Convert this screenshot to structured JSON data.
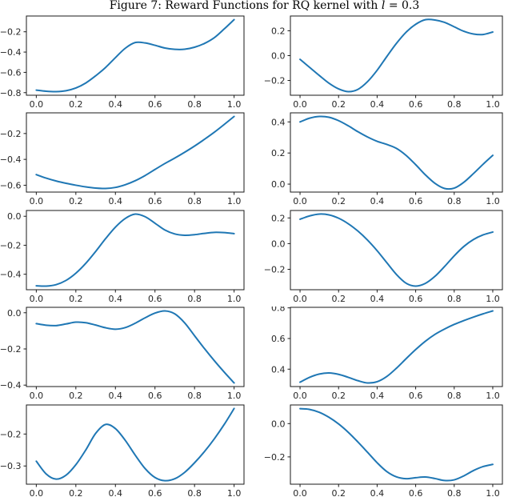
{
  "title": {
    "prefix": "Figure 7: Reward Functions for RQ kernel with ",
    "variable": "l",
    "suffix": " = 0.3"
  },
  "style": {
    "line_color": "#1f77b4",
    "axis_color": "#1a1a1a",
    "text_color": "#262626",
    "background": "#ffffff"
  },
  "chart_data": [
    {
      "name": "reward-function-1",
      "type": "line",
      "grid": false,
      "position": {
        "row": 0,
        "col": 0
      },
      "xlim": [
        -0.05,
        1.05
      ],
      "ylim": [
        -0.8255,
        -0.0445
      ],
      "xticks": [
        0.0,
        0.2,
        0.4,
        0.6,
        0.8,
        1.0
      ],
      "yticks": [
        -0.2,
        -0.4,
        -0.6,
        -0.8
      ],
      "x": [
        0,
        0.05,
        0.1,
        0.15,
        0.2,
        0.25,
        0.3,
        0.35,
        0.4,
        0.45,
        0.5,
        0.55,
        0.6,
        0.65,
        0.7,
        0.75,
        0.8,
        0.85,
        0.9,
        0.95,
        1.0
      ],
      "y": [
        -0.775,
        -0.786,
        -0.79,
        -0.781,
        -0.754,
        -0.705,
        -0.634,
        -0.552,
        -0.455,
        -0.362,
        -0.306,
        -0.31,
        -0.333,
        -0.36,
        -0.373,
        -0.372,
        -0.352,
        -0.315,
        -0.258,
        -0.172,
        -0.08
      ]
    },
    {
      "name": "reward-function-2",
      "type": "line",
      "grid": false,
      "position": {
        "row": 0,
        "col": 1
      },
      "xlim": [
        -0.05,
        1.05
      ],
      "ylim": [
        -0.319,
        0.319
      ],
      "xticks": [
        0.0,
        0.2,
        0.4,
        0.6,
        0.8,
        1.0
      ],
      "yticks": [
        0.2,
        0.0,
        -0.2
      ],
      "x": [
        0,
        0.05,
        0.1,
        0.15,
        0.2,
        0.25,
        0.3,
        0.35,
        0.4,
        0.45,
        0.5,
        0.55,
        0.6,
        0.65,
        0.7,
        0.75,
        0.8,
        0.85,
        0.9,
        0.95,
        1.0
      ],
      "y": [
        -0.03,
        -0.095,
        -0.16,
        -0.222,
        -0.268,
        -0.29,
        -0.272,
        -0.21,
        -0.118,
        -0.008,
        0.098,
        0.188,
        0.252,
        0.289,
        0.287,
        0.268,
        0.232,
        0.196,
        0.174,
        0.17,
        0.19
      ]
    },
    {
      "name": "reward-function-3",
      "type": "line",
      "grid": false,
      "position": {
        "row": 1,
        "col": 0
      },
      "xlim": [
        -0.05,
        1.05
      ],
      "ylim": [
        -0.6529,
        -0.0401
      ],
      "xticks": [
        0.0,
        0.2,
        0.4,
        0.6,
        0.8,
        1.0
      ],
      "yticks": [
        -0.2,
        -0.4,
        -0.6
      ],
      "x": [
        0,
        0.05,
        0.1,
        0.15,
        0.2,
        0.25,
        0.3,
        0.35,
        0.4,
        0.45,
        0.5,
        0.55,
        0.6,
        0.65,
        0.7,
        0.75,
        0.8,
        0.85,
        0.9,
        0.95,
        1.0
      ],
      "y": [
        -0.518,
        -0.545,
        -0.567,
        -0.585,
        -0.6,
        -0.613,
        -0.622,
        -0.625,
        -0.617,
        -0.596,
        -0.565,
        -0.525,
        -0.478,
        -0.432,
        -0.39,
        -0.345,
        -0.297,
        -0.245,
        -0.19,
        -0.13,
        -0.068
      ]
    },
    {
      "name": "reward-function-4",
      "type": "line",
      "grid": false,
      "position": {
        "row": 1,
        "col": 1
      },
      "xlim": [
        -0.05,
        1.05
      ],
      "ylim": [
        -0.0512,
        0.4582
      ],
      "xticks": [
        0.0,
        0.2,
        0.4,
        0.6,
        0.8,
        1.0
      ],
      "yticks": [
        0.4,
        0.2,
        0.0
      ],
      "x": [
        0,
        0.05,
        0.1,
        0.15,
        0.2,
        0.25,
        0.3,
        0.35,
        0.4,
        0.45,
        0.5,
        0.55,
        0.6,
        0.65,
        0.7,
        0.75,
        0.8,
        0.85,
        0.9,
        0.95,
        1.0
      ],
      "y": [
        0.4,
        0.424,
        0.435,
        0.43,
        0.408,
        0.375,
        0.337,
        0.303,
        0.275,
        0.255,
        0.23,
        0.185,
        0.125,
        0.06,
        0.005,
        -0.028,
        -0.026,
        0.012,
        0.068,
        0.128,
        0.185
      ]
    },
    {
      "name": "reward-function-5",
      "type": "line",
      "grid": false,
      "position": {
        "row": 2,
        "col": 0
      },
      "xlim": [
        -0.05,
        1.05
      ],
      "ylim": [
        -0.5069,
        0.0399
      ],
      "xticks": [
        0.0,
        0.2,
        0.4,
        0.6,
        0.8,
        1.0
      ],
      "yticks": [
        0.0,
        -0.2,
        -0.4
      ],
      "x": [
        0,
        0.05,
        0.1,
        0.15,
        0.2,
        0.25,
        0.3,
        0.35,
        0.4,
        0.45,
        0.5,
        0.55,
        0.6,
        0.65,
        0.7,
        0.75,
        0.8,
        0.85,
        0.9,
        0.95,
        1.0
      ],
      "y": [
        -0.48,
        -0.482,
        -0.472,
        -0.443,
        -0.393,
        -0.325,
        -0.243,
        -0.155,
        -0.075,
        -0.015,
        0.015,
        -0.003,
        -0.048,
        -0.095,
        -0.122,
        -0.131,
        -0.127,
        -0.118,
        -0.111,
        -0.113,
        -0.12
      ]
    },
    {
      "name": "reward-function-6",
      "type": "line",
      "grid": false,
      "position": {
        "row": 2,
        "col": 1
      },
      "xlim": [
        -0.05,
        1.05
      ],
      "ylim": [
        -0.359,
        0.258
      ],
      "xticks": [
        0.0,
        0.2,
        0.4,
        0.6,
        0.8,
        1.0
      ],
      "yticks": [
        0.2,
        0.0,
        -0.2
      ],
      "x": [
        0,
        0.05,
        0.1,
        0.15,
        0.2,
        0.25,
        0.3,
        0.35,
        0.4,
        0.45,
        0.5,
        0.55,
        0.6,
        0.65,
        0.7,
        0.75,
        0.8,
        0.85,
        0.9,
        0.95,
        1.0
      ],
      "y": [
        0.19,
        0.216,
        0.23,
        0.224,
        0.198,
        0.155,
        0.098,
        0.028,
        -0.055,
        -0.148,
        -0.24,
        -0.308,
        -0.331,
        -0.31,
        -0.255,
        -0.178,
        -0.095,
        -0.022,
        0.032,
        0.068,
        0.09
      ]
    },
    {
      "name": "reward-function-7",
      "type": "line",
      "grid": false,
      "position": {
        "row": 3,
        "col": 0
      },
      "xlim": [
        -0.05,
        1.05
      ],
      "ylim": [
        -0.408,
        0.03
      ],
      "xticks": [
        0.0,
        0.2,
        0.4,
        0.6,
        0.8,
        1.0
      ],
      "yticks": [
        0.0,
        -0.2,
        -0.4
      ],
      "x": [
        0,
        0.05,
        0.1,
        0.15,
        0.2,
        0.25,
        0.3,
        0.35,
        0.4,
        0.45,
        0.5,
        0.55,
        0.6,
        0.65,
        0.7,
        0.75,
        0.8,
        0.85,
        0.9,
        0.95,
        1.0
      ],
      "y": [
        -0.06,
        -0.069,
        -0.071,
        -0.062,
        -0.052,
        -0.055,
        -0.068,
        -0.083,
        -0.091,
        -0.082,
        -0.058,
        -0.028,
        -0.002,
        0.01,
        -0.006,
        -0.056,
        -0.127,
        -0.198,
        -0.265,
        -0.328,
        -0.388
      ]
    },
    {
      "name": "reward-function-8",
      "type": "line",
      "grid": false,
      "position": {
        "row": 3,
        "col": 1
      },
      "xlim": [
        -0.05,
        1.05
      ],
      "ylim": [
        0.2865,
        0.8035
      ],
      "xticks": [
        0.0,
        0.2,
        0.4,
        0.6,
        0.8,
        1.0
      ],
      "yticks": [
        0.8,
        0.6,
        0.4
      ],
      "x": [
        0,
        0.05,
        0.1,
        0.15,
        0.2,
        0.25,
        0.3,
        0.35,
        0.4,
        0.45,
        0.5,
        0.55,
        0.6,
        0.65,
        0.7,
        0.75,
        0.8,
        0.85,
        0.9,
        0.95,
        1.0
      ],
      "y": [
        0.315,
        0.347,
        0.368,
        0.375,
        0.366,
        0.347,
        0.325,
        0.31,
        0.318,
        0.352,
        0.406,
        0.468,
        0.528,
        0.582,
        0.627,
        0.662,
        0.692,
        0.717,
        0.74,
        0.761,
        0.78
      ]
    },
    {
      "name": "reward-function-9",
      "type": "line",
      "grid": false,
      "position": {
        "row": 4,
        "col": 0
      },
      "xlim": [
        -0.05,
        1.05
      ],
      "ylim": [
        -0.357,
        -0.109
      ],
      "xticks": [
        0.0,
        0.2,
        0.4,
        0.6,
        0.8,
        1.0
      ],
      "yticks": [
        -0.2,
        -0.3
      ],
      "x": [
        0,
        0.05,
        0.1,
        0.15,
        0.2,
        0.25,
        0.3,
        0.35,
        0.4,
        0.45,
        0.5,
        0.55,
        0.6,
        0.65,
        0.7,
        0.75,
        0.8,
        0.85,
        0.9,
        0.95,
        1.0
      ],
      "y": [
        -0.285,
        -0.325,
        -0.341,
        -0.329,
        -0.296,
        -0.25,
        -0.198,
        -0.17,
        -0.183,
        -0.22,
        -0.266,
        -0.308,
        -0.336,
        -0.346,
        -0.34,
        -0.32,
        -0.29,
        -0.255,
        -0.215,
        -0.17,
        -0.12
      ]
    },
    {
      "name": "reward-function-10",
      "type": "line",
      "grid": false,
      "position": {
        "row": 4,
        "col": 1
      },
      "xlim": [
        -0.05,
        1.05
      ],
      "ylim": [
        -0.364,
        0.112
      ],
      "xticks": [
        0.0,
        0.2,
        0.4,
        0.6,
        0.8,
        1.0
      ],
      "yticks": [
        0.0,
        -0.2
      ],
      "x": [
        0,
        0.05,
        0.1,
        0.15,
        0.2,
        0.25,
        0.3,
        0.35,
        0.4,
        0.45,
        0.5,
        0.55,
        0.6,
        0.65,
        0.7,
        0.75,
        0.8,
        0.85,
        0.9,
        0.95,
        1.0
      ],
      "y": [
        0.09,
        0.085,
        0.068,
        0.038,
        -0.002,
        -0.052,
        -0.11,
        -0.172,
        -0.235,
        -0.288,
        -0.32,
        -0.331,
        -0.325,
        -0.321,
        -0.33,
        -0.342,
        -0.338,
        -0.314,
        -0.282,
        -0.258,
        -0.245
      ]
    }
  ]
}
